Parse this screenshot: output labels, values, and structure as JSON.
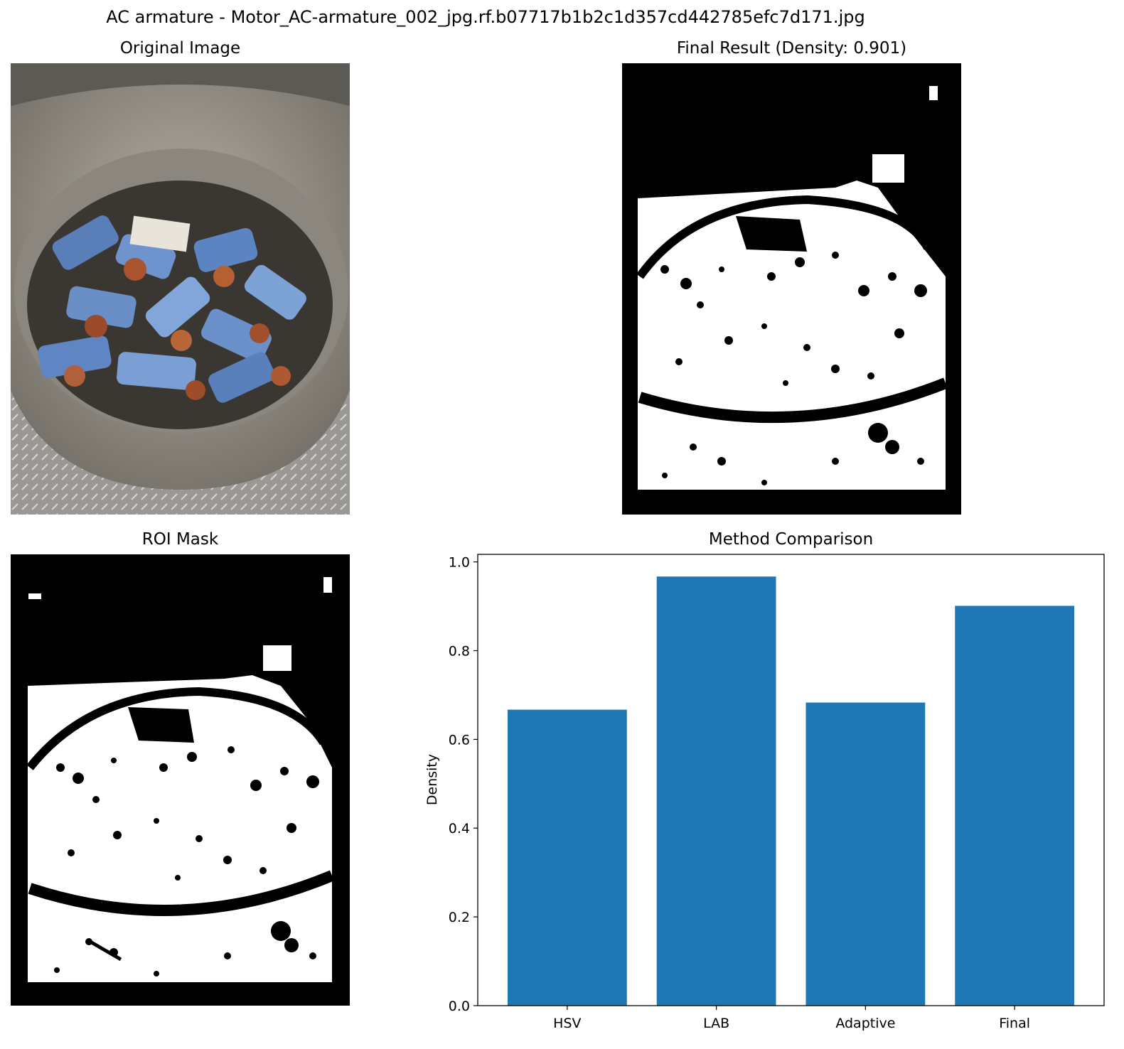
{
  "figure": {
    "suptitle": "AC armature - Motor_AC-armature_002_jpg.rf.b07717b1b2c1d357cd442785efc7d171.jpg"
  },
  "panels": {
    "original": {
      "title": "Original Image"
    },
    "final": {
      "title": "Final Result (Density: 0.901)"
    },
    "roi": {
      "title": "ROI Mask"
    },
    "comparison": {
      "title": "Method Comparison"
    }
  },
  "colors": {
    "bar": "#1f77b4",
    "mask_fg": "#ffffff",
    "mask_bg": "#000000"
  },
  "chart_data": {
    "type": "bar",
    "title": "Method Comparison",
    "categories": [
      "HSV",
      "LAB",
      "Adaptive",
      "Final"
    ],
    "values": [
      0.667,
      0.967,
      0.683,
      0.901
    ],
    "xlabel": "",
    "ylabel": "Density",
    "ylim": [
      0.0,
      1.017
    ],
    "yticks": [
      "0.0",
      "0.2",
      "0.4",
      "0.6",
      "0.8",
      "1.0"
    ],
    "grid": false
  }
}
